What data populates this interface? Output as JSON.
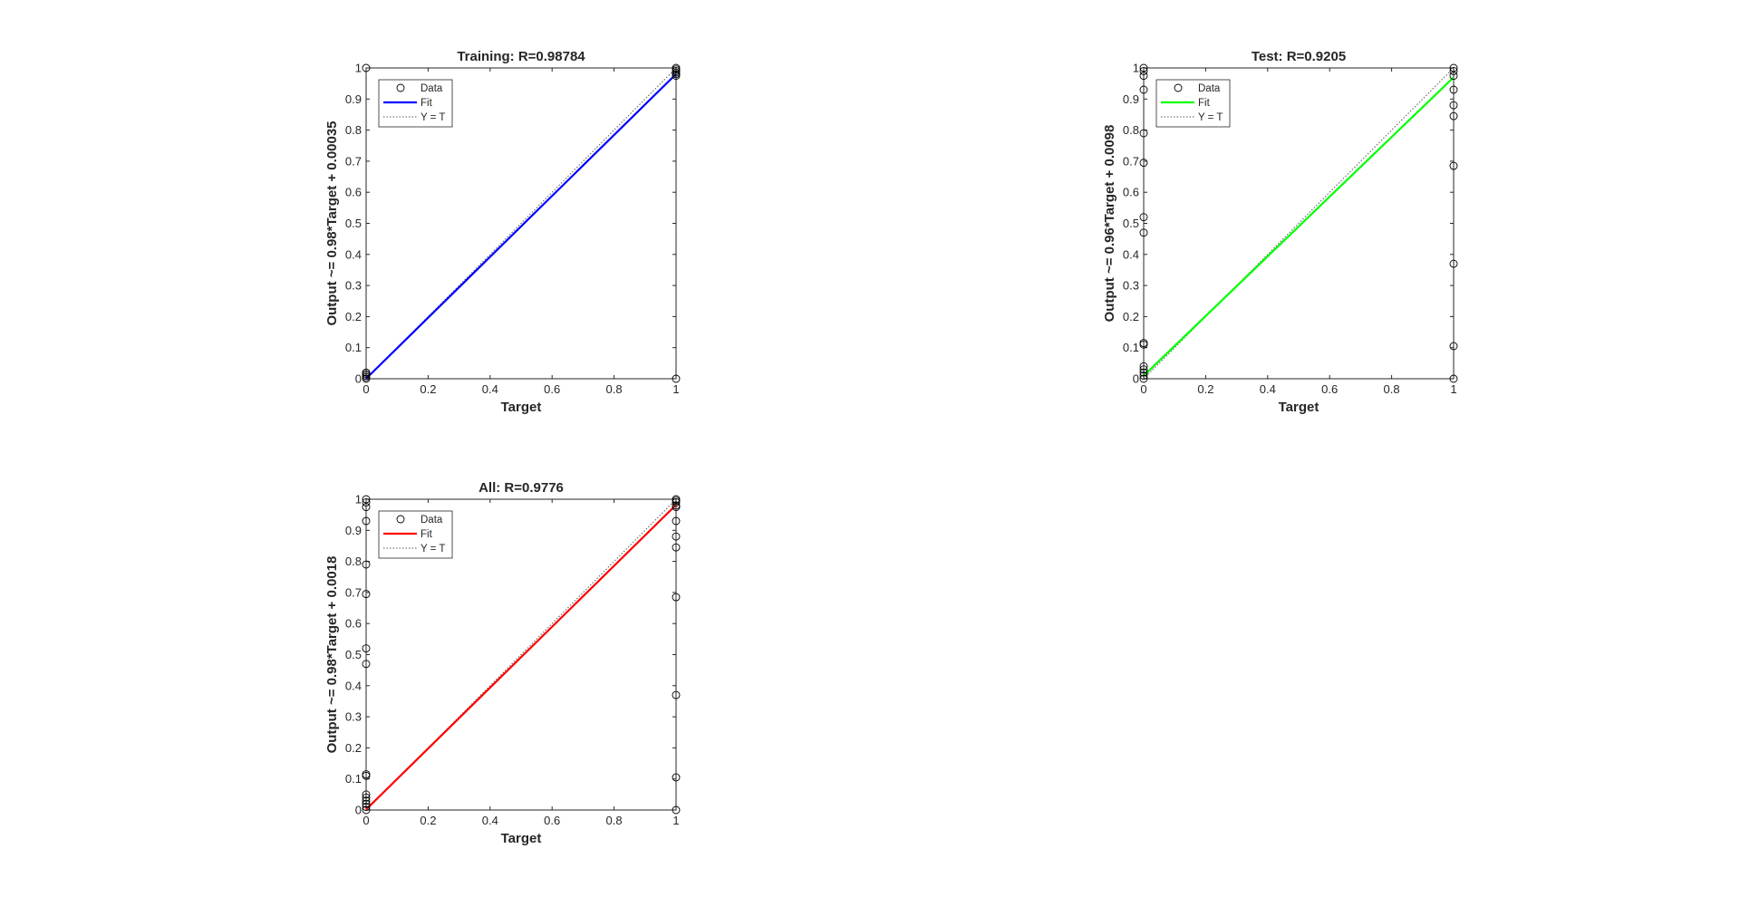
{
  "chart_data": [
    {
      "type": "scatter",
      "title": "Training: R=0.98784",
      "xlabel": "Target",
      "ylabel": "Output ~= 0.98*Target + 0.00035",
      "xlim": [
        0,
        1
      ],
      "ylim": [
        0,
        1
      ],
      "xticks": [
        "0",
        "0.2",
        "0.4",
        "0.6",
        "0.8",
        "1"
      ],
      "yticks": [
        "0",
        "0.1",
        "0.2",
        "0.3",
        "0.4",
        "0.5",
        "0.6",
        "0.7",
        "0.8",
        "0.9",
        "1"
      ],
      "grid": false,
      "legend": {
        "position": "top-left",
        "entries": [
          "Data",
          "Fit",
          "Y = T"
        ]
      },
      "fit": {
        "slope": 0.98,
        "intercept": 0.00035,
        "color": "#0000ff"
      },
      "reference_line": {
        "name": "Y = T",
        "slope": 1,
        "intercept": 0
      },
      "points": [
        {
          "x": 0,
          "y": 0.0
        },
        {
          "x": 0,
          "y": 0.005
        },
        {
          "x": 0,
          "y": 0.01
        },
        {
          "x": 0,
          "y": 0.015
        },
        {
          "x": 0,
          "y": 0.02
        },
        {
          "x": 0,
          "y": 1.0
        },
        {
          "x": 1,
          "y": 0.0
        },
        {
          "x": 1,
          "y": 0.975
        },
        {
          "x": 1,
          "y": 0.98
        },
        {
          "x": 1,
          "y": 0.985
        },
        {
          "x": 1,
          "y": 0.99
        },
        {
          "x": 1,
          "y": 0.995
        },
        {
          "x": 1,
          "y": 1.0
        }
      ]
    },
    {
      "type": "scatter",
      "title": "Test: R=0.9205",
      "xlabel": "Target",
      "ylabel": "Output ~= 0.96*Target + 0.0098",
      "xlim": [
        0,
        1
      ],
      "ylim": [
        0,
        1
      ],
      "xticks": [
        "0",
        "0.2",
        "0.4",
        "0.6",
        "0.8",
        "1"
      ],
      "yticks": [
        "0",
        "0.1",
        "0.2",
        "0.3",
        "0.4",
        "0.5",
        "0.6",
        "0.7",
        "0.8",
        "0.9",
        "1"
      ],
      "grid": false,
      "legend": {
        "position": "top-left",
        "entries": [
          "Data",
          "Fit",
          "Y = T"
        ]
      },
      "fit": {
        "slope": 0.96,
        "intercept": 0.0098,
        "color": "#00ff00"
      },
      "reference_line": {
        "name": "Y = T",
        "slope": 1,
        "intercept": 0
      },
      "points": [
        {
          "x": 0,
          "y": 0.0
        },
        {
          "x": 0,
          "y": 0.01
        },
        {
          "x": 0,
          "y": 0.02
        },
        {
          "x": 0,
          "y": 0.03
        },
        {
          "x": 0,
          "y": 0.04
        },
        {
          "x": 0,
          "y": 0.11
        },
        {
          "x": 0,
          "y": 0.115
        },
        {
          "x": 0,
          "y": 0.47
        },
        {
          "x": 0,
          "y": 0.52
        },
        {
          "x": 0,
          "y": 0.695
        },
        {
          "x": 0,
          "y": 0.79
        },
        {
          "x": 0,
          "y": 0.93
        },
        {
          "x": 0,
          "y": 0.975
        },
        {
          "x": 0,
          "y": 0.99
        },
        {
          "x": 0,
          "y": 1.0
        },
        {
          "x": 1,
          "y": 0.0
        },
        {
          "x": 1,
          "y": 0.105
        },
        {
          "x": 1,
          "y": 0.37
        },
        {
          "x": 1,
          "y": 0.685
        },
        {
          "x": 1,
          "y": 0.845
        },
        {
          "x": 1,
          "y": 0.88
        },
        {
          "x": 1,
          "y": 0.93
        },
        {
          "x": 1,
          "y": 0.975
        },
        {
          "x": 1,
          "y": 0.99
        },
        {
          "x": 1,
          "y": 1.0
        }
      ]
    },
    {
      "type": "scatter",
      "title": "All: R=0.9776",
      "xlabel": "Target",
      "ylabel": "Output ~= 0.98*Target + 0.0018",
      "xlim": [
        0,
        1
      ],
      "ylim": [
        0,
        1
      ],
      "xticks": [
        "0",
        "0.2",
        "0.4",
        "0.6",
        "0.8",
        "1"
      ],
      "yticks": [
        "0",
        "0.1",
        "0.2",
        "0.3",
        "0.4",
        "0.5",
        "0.6",
        "0.7",
        "0.8",
        "0.9",
        "1"
      ],
      "grid": false,
      "legend": {
        "position": "top-left",
        "entries": [
          "Data",
          "Fit",
          "Y = T"
        ]
      },
      "fit": {
        "slope": 0.98,
        "intercept": 0.0018,
        "color": "#ff0000"
      },
      "reference_line": {
        "name": "Y = T",
        "slope": 1,
        "intercept": 0
      },
      "points": [
        {
          "x": 0,
          "y": 0.0
        },
        {
          "x": 0,
          "y": 0.01
        },
        {
          "x": 0,
          "y": 0.02
        },
        {
          "x": 0,
          "y": 0.03
        },
        {
          "x": 0,
          "y": 0.04
        },
        {
          "x": 0,
          "y": 0.05
        },
        {
          "x": 0,
          "y": 0.11
        },
        {
          "x": 0,
          "y": 0.115
        },
        {
          "x": 0,
          "y": 0.47
        },
        {
          "x": 0,
          "y": 0.52
        },
        {
          "x": 0,
          "y": 0.695
        },
        {
          "x": 0,
          "y": 0.79
        },
        {
          "x": 0,
          "y": 0.93
        },
        {
          "x": 0,
          "y": 0.975
        },
        {
          "x": 0,
          "y": 0.99
        },
        {
          "x": 0,
          "y": 1.0
        },
        {
          "x": 1,
          "y": 0.0
        },
        {
          "x": 1,
          "y": 0.105
        },
        {
          "x": 1,
          "y": 0.37
        },
        {
          "x": 1,
          "y": 0.685
        },
        {
          "x": 1,
          "y": 0.845
        },
        {
          "x": 1,
          "y": 0.88
        },
        {
          "x": 1,
          "y": 0.93
        },
        {
          "x": 1,
          "y": 0.975
        },
        {
          "x": 1,
          "y": 0.98
        },
        {
          "x": 1,
          "y": 0.99
        },
        {
          "x": 1,
          "y": 0.995
        },
        {
          "x": 1,
          "y": 1.0
        }
      ]
    }
  ]
}
